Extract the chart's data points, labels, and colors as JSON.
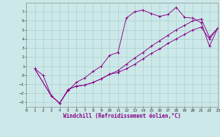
{
  "xlabel": "Windchill (Refroidissement éolien,°C)",
  "background_color": "#cce8e8",
  "line_color": "#880088",
  "grid_color": "#aacfcf",
  "xlim": [
    0,
    23
  ],
  "ylim": [
    -3.5,
    8.0
  ],
  "xticks": [
    0,
    1,
    2,
    3,
    4,
    5,
    6,
    7,
    8,
    9,
    10,
    11,
    12,
    13,
    14,
    15,
    16,
    17,
    18,
    19,
    20,
    21,
    22,
    23
  ],
  "yticks": [
    -3,
    -2,
    -1,
    0,
    1,
    2,
    3,
    4,
    5,
    6,
    7
  ],
  "series1_x": [
    1,
    2,
    3,
    4,
    5,
    6,
    7,
    8,
    9,
    10,
    11,
    12,
    13,
    14,
    15,
    16,
    17,
    18,
    19,
    20,
    21,
    22,
    23
  ],
  "series1_y": [
    0.7,
    0.0,
    -2.3,
    -3.1,
    -1.7,
    -0.8,
    -0.3,
    0.4,
    1.0,
    2.2,
    2.5,
    6.3,
    7.0,
    7.2,
    6.8,
    6.5,
    6.7,
    7.5,
    6.4,
    6.3,
    5.8,
    3.2,
    5.2
  ],
  "series2_x": [
    1,
    3,
    4,
    5,
    6,
    7,
    8,
    9,
    10,
    11,
    12,
    13,
    14,
    15,
    16,
    17,
    18,
    19,
    20,
    21,
    22,
    23
  ],
  "series2_y": [
    0.7,
    -2.3,
    -3.1,
    -1.6,
    -1.2,
    -1.1,
    -0.8,
    -0.4,
    0.1,
    0.5,
    1.2,
    1.9,
    2.5,
    3.2,
    3.8,
    4.4,
    5.0,
    5.5,
    6.0,
    6.2,
    4.2,
    5.2
  ],
  "series3_x": [
    1,
    3,
    4,
    5,
    6,
    7,
    8,
    9,
    10,
    11,
    12,
    13,
    14,
    15,
    16,
    17,
    18,
    19,
    20,
    21,
    22,
    23
  ],
  "series3_y": [
    0.7,
    -2.3,
    -3.1,
    -1.6,
    -1.2,
    -1.1,
    -0.8,
    -0.4,
    0.1,
    0.3,
    0.7,
    1.2,
    1.8,
    2.4,
    2.9,
    3.5,
    4.0,
    4.5,
    5.0,
    5.3,
    4.0,
    5.2
  ]
}
